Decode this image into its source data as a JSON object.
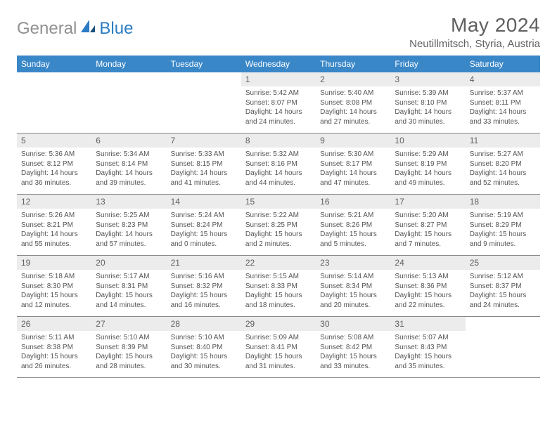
{
  "logo": {
    "text1": "General",
    "text2": "Blue"
  },
  "title": "May 2024",
  "location": "Neutillmitsch, Styria, Austria",
  "dayNames": [
    "Sunday",
    "Monday",
    "Tuesday",
    "Wednesday",
    "Thursday",
    "Friday",
    "Saturday"
  ],
  "colors": {
    "headerBg": "#3a87c8",
    "headerText": "#ffffff",
    "dayNumBg": "#ececec",
    "textMuted": "#606060",
    "bodyText": "#555555",
    "rule": "#888888",
    "logoGray": "#909090",
    "logoBlue": "#2b7cc4"
  },
  "weeks": [
    [
      {
        "n": "",
        "sunrise": "",
        "sunset": "",
        "daylight": ""
      },
      {
        "n": "",
        "sunrise": "",
        "sunset": "",
        "daylight": ""
      },
      {
        "n": "",
        "sunrise": "",
        "sunset": "",
        "daylight": ""
      },
      {
        "n": "1",
        "sunrise": "Sunrise: 5:42 AM",
        "sunset": "Sunset: 8:07 PM",
        "daylight": "Daylight: 14 hours and 24 minutes."
      },
      {
        "n": "2",
        "sunrise": "Sunrise: 5:40 AM",
        "sunset": "Sunset: 8:08 PM",
        "daylight": "Daylight: 14 hours and 27 minutes."
      },
      {
        "n": "3",
        "sunrise": "Sunrise: 5:39 AM",
        "sunset": "Sunset: 8:10 PM",
        "daylight": "Daylight: 14 hours and 30 minutes."
      },
      {
        "n": "4",
        "sunrise": "Sunrise: 5:37 AM",
        "sunset": "Sunset: 8:11 PM",
        "daylight": "Daylight: 14 hours and 33 minutes."
      }
    ],
    [
      {
        "n": "5",
        "sunrise": "Sunrise: 5:36 AM",
        "sunset": "Sunset: 8:12 PM",
        "daylight": "Daylight: 14 hours and 36 minutes."
      },
      {
        "n": "6",
        "sunrise": "Sunrise: 5:34 AM",
        "sunset": "Sunset: 8:14 PM",
        "daylight": "Daylight: 14 hours and 39 minutes."
      },
      {
        "n": "7",
        "sunrise": "Sunrise: 5:33 AM",
        "sunset": "Sunset: 8:15 PM",
        "daylight": "Daylight: 14 hours and 41 minutes."
      },
      {
        "n": "8",
        "sunrise": "Sunrise: 5:32 AM",
        "sunset": "Sunset: 8:16 PM",
        "daylight": "Daylight: 14 hours and 44 minutes."
      },
      {
        "n": "9",
        "sunrise": "Sunrise: 5:30 AM",
        "sunset": "Sunset: 8:17 PM",
        "daylight": "Daylight: 14 hours and 47 minutes."
      },
      {
        "n": "10",
        "sunrise": "Sunrise: 5:29 AM",
        "sunset": "Sunset: 8:19 PM",
        "daylight": "Daylight: 14 hours and 49 minutes."
      },
      {
        "n": "11",
        "sunrise": "Sunrise: 5:27 AM",
        "sunset": "Sunset: 8:20 PM",
        "daylight": "Daylight: 14 hours and 52 minutes."
      }
    ],
    [
      {
        "n": "12",
        "sunrise": "Sunrise: 5:26 AM",
        "sunset": "Sunset: 8:21 PM",
        "daylight": "Daylight: 14 hours and 55 minutes."
      },
      {
        "n": "13",
        "sunrise": "Sunrise: 5:25 AM",
        "sunset": "Sunset: 8:23 PM",
        "daylight": "Daylight: 14 hours and 57 minutes."
      },
      {
        "n": "14",
        "sunrise": "Sunrise: 5:24 AM",
        "sunset": "Sunset: 8:24 PM",
        "daylight": "Daylight: 15 hours and 0 minutes."
      },
      {
        "n": "15",
        "sunrise": "Sunrise: 5:22 AM",
        "sunset": "Sunset: 8:25 PM",
        "daylight": "Daylight: 15 hours and 2 minutes."
      },
      {
        "n": "16",
        "sunrise": "Sunrise: 5:21 AM",
        "sunset": "Sunset: 8:26 PM",
        "daylight": "Daylight: 15 hours and 5 minutes."
      },
      {
        "n": "17",
        "sunrise": "Sunrise: 5:20 AM",
        "sunset": "Sunset: 8:27 PM",
        "daylight": "Daylight: 15 hours and 7 minutes."
      },
      {
        "n": "18",
        "sunrise": "Sunrise: 5:19 AM",
        "sunset": "Sunset: 8:29 PM",
        "daylight": "Daylight: 15 hours and 9 minutes."
      }
    ],
    [
      {
        "n": "19",
        "sunrise": "Sunrise: 5:18 AM",
        "sunset": "Sunset: 8:30 PM",
        "daylight": "Daylight: 15 hours and 12 minutes."
      },
      {
        "n": "20",
        "sunrise": "Sunrise: 5:17 AM",
        "sunset": "Sunset: 8:31 PM",
        "daylight": "Daylight: 15 hours and 14 minutes."
      },
      {
        "n": "21",
        "sunrise": "Sunrise: 5:16 AM",
        "sunset": "Sunset: 8:32 PM",
        "daylight": "Daylight: 15 hours and 16 minutes."
      },
      {
        "n": "22",
        "sunrise": "Sunrise: 5:15 AM",
        "sunset": "Sunset: 8:33 PM",
        "daylight": "Daylight: 15 hours and 18 minutes."
      },
      {
        "n": "23",
        "sunrise": "Sunrise: 5:14 AM",
        "sunset": "Sunset: 8:34 PM",
        "daylight": "Daylight: 15 hours and 20 minutes."
      },
      {
        "n": "24",
        "sunrise": "Sunrise: 5:13 AM",
        "sunset": "Sunset: 8:36 PM",
        "daylight": "Daylight: 15 hours and 22 minutes."
      },
      {
        "n": "25",
        "sunrise": "Sunrise: 5:12 AM",
        "sunset": "Sunset: 8:37 PM",
        "daylight": "Daylight: 15 hours and 24 minutes."
      }
    ],
    [
      {
        "n": "26",
        "sunrise": "Sunrise: 5:11 AM",
        "sunset": "Sunset: 8:38 PM",
        "daylight": "Daylight: 15 hours and 26 minutes."
      },
      {
        "n": "27",
        "sunrise": "Sunrise: 5:10 AM",
        "sunset": "Sunset: 8:39 PM",
        "daylight": "Daylight: 15 hours and 28 minutes."
      },
      {
        "n": "28",
        "sunrise": "Sunrise: 5:10 AM",
        "sunset": "Sunset: 8:40 PM",
        "daylight": "Daylight: 15 hours and 30 minutes."
      },
      {
        "n": "29",
        "sunrise": "Sunrise: 5:09 AM",
        "sunset": "Sunset: 8:41 PM",
        "daylight": "Daylight: 15 hours and 31 minutes."
      },
      {
        "n": "30",
        "sunrise": "Sunrise: 5:08 AM",
        "sunset": "Sunset: 8:42 PM",
        "daylight": "Daylight: 15 hours and 33 minutes."
      },
      {
        "n": "31",
        "sunrise": "Sunrise: 5:07 AM",
        "sunset": "Sunset: 8:43 PM",
        "daylight": "Daylight: 15 hours and 35 minutes."
      },
      {
        "n": "",
        "sunrise": "",
        "sunset": "",
        "daylight": ""
      }
    ]
  ]
}
